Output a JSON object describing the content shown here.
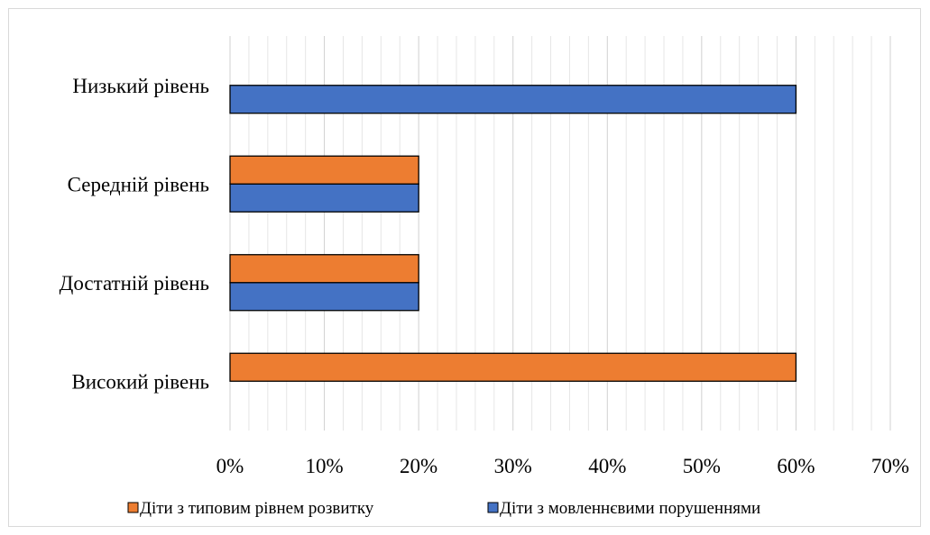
{
  "chart_data": {
    "type": "bar",
    "orientation": "horizontal",
    "categories": [
      "Високий рівень",
      "Достатній рівень",
      "Середній рівень",
      "Низький рівень"
    ],
    "series": [
      {
        "name": "Діти з мовленнєвими порушеннями",
        "color": "#4472c4",
        "values": [
          0,
          20,
          20,
          60
        ]
      },
      {
        "name": "Діти з типовим рівнем розвитку",
        "color": "#ed7d31",
        "values": [
          60,
          20,
          20,
          0
        ]
      }
    ],
    "x_ticks": [
      "0%",
      "10%",
      "20%",
      "30%",
      "40%",
      "50%",
      "60%",
      "70%"
    ],
    "xlim": [
      0,
      70
    ],
    "unit": "%",
    "grid": "vertical major and minor lines",
    "legend_position": "bottom",
    "legend_order": [
      "Діти з типовим рівнем розвитку",
      "Діти з мовленнєвими порушеннями"
    ]
  }
}
